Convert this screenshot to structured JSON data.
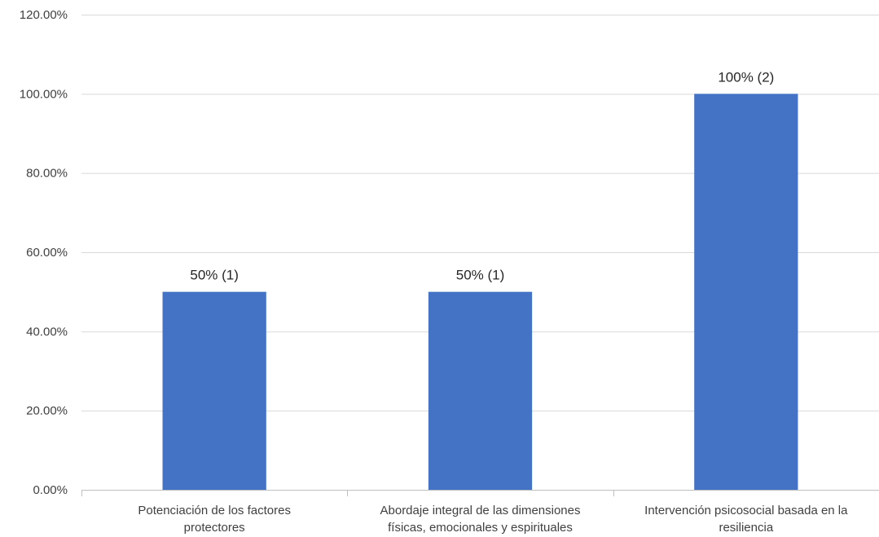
{
  "chart_data": {
    "type": "bar",
    "title": "",
    "xlabel": "",
    "ylabel": "",
    "categories": [
      [
        "Potenciación de los factores",
        "protectores"
      ],
      [
        "Abordaje integral de las dimensiones",
        "físicas, emocionales y espirituales"
      ],
      [
        "Intervención psicosocial basada en la",
        "resiliencia"
      ]
    ],
    "values": [
      50,
      50,
      100
    ],
    "data_labels": [
      "50% (1)",
      "50% (1)",
      "100% (2)"
    ],
    "ylim": [
      0,
      120
    ],
    "yticks": [
      0,
      20,
      40,
      60,
      80,
      100,
      120
    ],
    "ytick_labels": [
      "0.00%",
      "20.00%",
      "40.00%",
      "60.00%",
      "80.00%",
      "100.00%",
      "120.00%"
    ],
    "grid": true,
    "legend": "none",
    "bar_color": "#4472c4"
  }
}
